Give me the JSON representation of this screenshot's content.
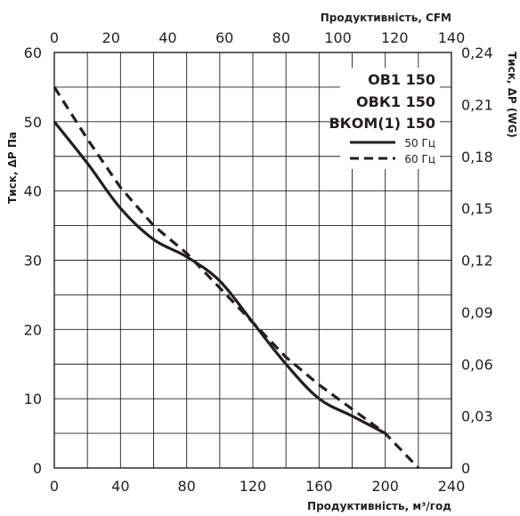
{
  "chart_data": {
    "type": "line",
    "x_bottom": {
      "label": "Продуктивність, м³/год",
      "range": [
        0,
        240
      ],
      "ticks": [
        "0",
        "40",
        "80",
        "120",
        "160",
        "200",
        "240"
      ]
    },
    "x_top": {
      "label": "Продуктивність, CFM",
      "range": [
        0,
        140
      ],
      "ticks": [
        "0",
        "20",
        "40",
        "60",
        "80",
        "100",
        "120",
        "140"
      ]
    },
    "y_left": {
      "label": "Тиск, ΔP Па",
      "range": [
        0,
        60
      ],
      "ticks": [
        "0",
        "10",
        "20",
        "30",
        "40",
        "50",
        "60"
      ]
    },
    "y_right": {
      "label": "Тиск, ΔP (WG)",
      "range": [
        0,
        0.24
      ],
      "ticks": [
        "0",
        "0,03",
        "0,06",
        "0,09",
        "0,12",
        "0,15",
        "0,18",
        "0,21",
        "0,24"
      ]
    },
    "grid": true,
    "legend": {
      "placement": "top-right",
      "models": [
        "ОВ1 150",
        "ОВК1 150",
        "ВКОМ(1) 150"
      ]
    },
    "series": [
      {
        "name": "50 Гц",
        "style": "solid",
        "x": [
          0,
          20,
          40,
          60,
          80,
          100,
          120,
          140,
          160,
          180,
          200
        ],
        "y": [
          50,
          44,
          37.5,
          33,
          30.5,
          27,
          21,
          15,
          10,
          7.5,
          5
        ]
      },
      {
        "name": "60 Гц",
        "style": "dashed",
        "x": [
          0,
          20,
          40,
          60,
          80,
          100,
          120,
          140,
          160,
          180,
          200,
          220
        ],
        "y": [
          55,
          47.5,
          40.5,
          35,
          31,
          26,
          21,
          16,
          12,
          8.5,
          5,
          0
        ]
      }
    ],
    "colors": {
      "line": "#231f20",
      "grid": "#231f20"
    }
  }
}
